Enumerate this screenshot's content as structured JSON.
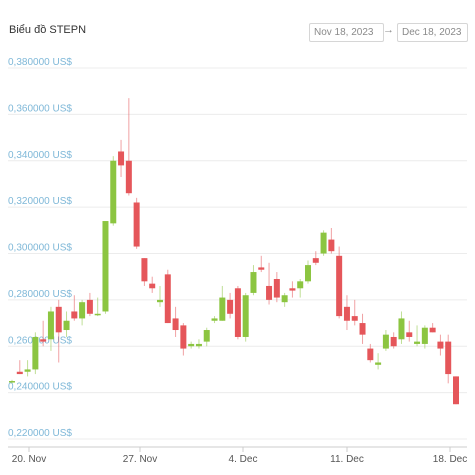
{
  "header": {
    "title": "Biểu đồ STEPN",
    "date_from": "Nov 18, 2023",
    "date_to": "Dec 18, 2023",
    "arrow": "→"
  },
  "colors": {
    "up": "#8cc541",
    "down": "#e5565a",
    "grid": "#ececec",
    "ylabel": "#7fb8d8"
  },
  "chart_data": {
    "type": "candlestick",
    "title": "Biểu đồ STEPN",
    "y_unit": "US$",
    "ylim": [
      0.22,
      0.38
    ],
    "y_ticks": [
      "0,220000 US$",
      "0,240000 US$",
      "0,260000 US$",
      "0,280000 US$",
      "0,300000 US$",
      "0,320000 US$",
      "0,340000 US$",
      "0,360000 US$",
      "0,380000 US$"
    ],
    "x_ticks": [
      "20. Nov",
      "27. Nov",
      "4. Dec",
      "11. Dec",
      "18. Dec"
    ],
    "grid": "horizontal",
    "candles": [
      {
        "date": "Nov 18",
        "o": 0.245,
        "h": 0.2455,
        "l": 0.244,
        "c": 0.245
      },
      {
        "date": "Nov 18",
        "o": 0.249,
        "h": 0.254,
        "l": 0.248,
        "c": 0.248
      },
      {
        "date": "Nov 19",
        "o": 0.249,
        "h": 0.254,
        "l": 0.247,
        "c": 0.25
      },
      {
        "date": "Nov 19",
        "o": 0.25,
        "h": 0.266,
        "l": 0.248,
        "c": 0.264
      },
      {
        "date": "Nov 20",
        "o": 0.263,
        "h": 0.271,
        "l": 0.26,
        "c": 0.262
      },
      {
        "date": "Nov 20",
        "o": 0.263,
        "h": 0.277,
        "l": 0.258,
        "c": 0.275
      },
      {
        "date": "Nov 21",
        "o": 0.277,
        "h": 0.28,
        "l": 0.253,
        "c": 0.266
      },
      {
        "date": "Nov 21",
        "o": 0.267,
        "h": 0.275,
        "l": 0.264,
        "c": 0.271
      },
      {
        "date": "Nov 22",
        "o": 0.275,
        "h": 0.282,
        "l": 0.271,
        "c": 0.272
      },
      {
        "date": "Nov 22",
        "o": 0.272,
        "h": 0.28,
        "l": 0.269,
        "c": 0.279
      },
      {
        "date": "Nov 23",
        "o": 0.28,
        "h": 0.283,
        "l": 0.273,
        "c": 0.274
      },
      {
        "date": "Nov 23",
        "o": 0.274,
        "h": 0.281,
        "l": 0.273,
        "c": 0.274
      },
      {
        "date": "Nov 24",
        "o": 0.275,
        "h": 0.313,
        "l": 0.274,
        "c": 0.314
      },
      {
        "date": "Nov 24",
        "o": 0.313,
        "h": 0.342,
        "l": 0.312,
        "c": 0.34
      },
      {
        "date": "Nov 25",
        "o": 0.344,
        "h": 0.349,
        "l": 0.333,
        "c": 0.338
      },
      {
        "date": "Nov 25",
        "o": 0.34,
        "h": 0.367,
        "l": 0.325,
        "c": 0.326
      },
      {
        "date": "Nov 26",
        "o": 0.322,
        "h": 0.324,
        "l": 0.302,
        "c": 0.303
      },
      {
        "date": "Nov 27",
        "o": 0.298,
        "h": 0.298,
        "l": 0.286,
        "c": 0.288
      },
      {
        "date": "Nov 27",
        "o": 0.287,
        "h": 0.29,
        "l": 0.283,
        "c": 0.285
      },
      {
        "date": "Nov 28",
        "o": 0.279,
        "h": 0.286,
        "l": 0.277,
        "c": 0.28
      },
      {
        "date": "Nov 28",
        "o": 0.291,
        "h": 0.293,
        "l": 0.27,
        "c": 0.27
      },
      {
        "date": "Nov 29",
        "o": 0.272,
        "h": 0.277,
        "l": 0.264,
        "c": 0.267
      },
      {
        "date": "Nov 29",
        "o": 0.269,
        "h": 0.27,
        "l": 0.256,
        "c": 0.259
      },
      {
        "date": "Nov 30",
        "o": 0.26,
        "h": 0.262,
        "l": 0.259,
        "c": 0.261
      },
      {
        "date": "Nov 30",
        "o": 0.26,
        "h": 0.263,
        "l": 0.259,
        "c": 0.261
      },
      {
        "date": "Dec 1",
        "o": 0.262,
        "h": 0.268,
        "l": 0.26,
        "c": 0.267
      },
      {
        "date": "Dec 1",
        "o": 0.271,
        "h": 0.273,
        "l": 0.27,
        "c": 0.272
      },
      {
        "date": "Dec 2",
        "o": 0.271,
        "h": 0.286,
        "l": 0.271,
        "c": 0.281
      },
      {
        "date": "Dec 2",
        "o": 0.28,
        "h": 0.283,
        "l": 0.272,
        "c": 0.274
      },
      {
        "date": "Dec 3",
        "o": 0.285,
        "h": 0.286,
        "l": 0.263,
        "c": 0.264
      },
      {
        "date": "Dec 3",
        "o": 0.264,
        "h": 0.283,
        "l": 0.262,
        "c": 0.282
      },
      {
        "date": "Dec 4",
        "o": 0.283,
        "h": 0.295,
        "l": 0.282,
        "c": 0.292
      },
      {
        "date": "Dec 4",
        "o": 0.294,
        "h": 0.299,
        "l": 0.292,
        "c": 0.293
      },
      {
        "date": "Dec 5",
        "o": 0.286,
        "h": 0.296,
        "l": 0.278,
        "c": 0.28
      },
      {
        "date": "Dec 5",
        "o": 0.289,
        "h": 0.292,
        "l": 0.279,
        "c": 0.281
      },
      {
        "date": "Dec 6",
        "o": 0.279,
        "h": 0.283,
        "l": 0.277,
        "c": 0.282
      },
      {
        "date": "Dec 6",
        "o": 0.285,
        "h": 0.288,
        "l": 0.281,
        "c": 0.284
      },
      {
        "date": "Dec 7",
        "o": 0.285,
        "h": 0.289,
        "l": 0.281,
        "c": 0.288
      },
      {
        "date": "Dec 7",
        "o": 0.288,
        "h": 0.297,
        "l": 0.287,
        "c": 0.295
      },
      {
        "date": "Dec 8",
        "o": 0.298,
        "h": 0.301,
        "l": 0.295,
        "c": 0.296
      },
      {
        "date": "Dec 8",
        "o": 0.3,
        "h": 0.31,
        "l": 0.299,
        "c": 0.309
      },
      {
        "date": "Dec 9",
        "o": 0.306,
        "h": 0.311,
        "l": 0.3,
        "c": 0.301
      },
      {
        "date": "Dec 9",
        "o": 0.299,
        "h": 0.303,
        "l": 0.272,
        "c": 0.273
      },
      {
        "date": "Dec 10",
        "o": 0.277,
        "h": 0.282,
        "l": 0.267,
        "c": 0.271
      },
      {
        "date": "Dec 10",
        "o": 0.273,
        "h": 0.28,
        "l": 0.269,
        "c": 0.271
      },
      {
        "date": "Dec 11",
        "o": 0.27,
        "h": 0.274,
        "l": 0.261,
        "c": 0.265
      },
      {
        "date": "Dec 11",
        "o": 0.259,
        "h": 0.261,
        "l": 0.253,
        "c": 0.254
      },
      {
        "date": "Dec 12",
        "o": 0.252,
        "h": 0.257,
        "l": 0.25,
        "c": 0.253
      },
      {
        "date": "Dec 12",
        "o": 0.259,
        "h": 0.267,
        "l": 0.258,
        "c": 0.265
      },
      {
        "date": "Dec 13",
        "o": 0.264,
        "h": 0.266,
        "l": 0.259,
        "c": 0.26
      },
      {
        "date": "Dec 13",
        "o": 0.263,
        "h": 0.275,
        "l": 0.261,
        "c": 0.272
      },
      {
        "date": "Dec 14",
        "o": 0.266,
        "h": 0.271,
        "l": 0.262,
        "c": 0.264
      },
      {
        "date": "Dec 14",
        "o": 0.261,
        "h": 0.269,
        "l": 0.26,
        "c": 0.262
      },
      {
        "date": "Dec 15",
        "o": 0.261,
        "h": 0.269,
        "l": 0.259,
        "c": 0.268
      },
      {
        "date": "Dec 15",
        "o": 0.268,
        "h": 0.27,
        "l": 0.266,
        "c": 0.266
      },
      {
        "date": "Dec 16",
        "o": 0.262,
        "h": 0.265,
        "l": 0.256,
        "c": 0.259
      },
      {
        "date": "Dec 17",
        "o": 0.262,
        "h": 0.265,
        "l": 0.244,
        "c": 0.248
      },
      {
        "date": "Dec 18",
        "o": 0.247,
        "h": 0.247,
        "l": 0.235,
        "c": 0.235
      }
    ]
  }
}
